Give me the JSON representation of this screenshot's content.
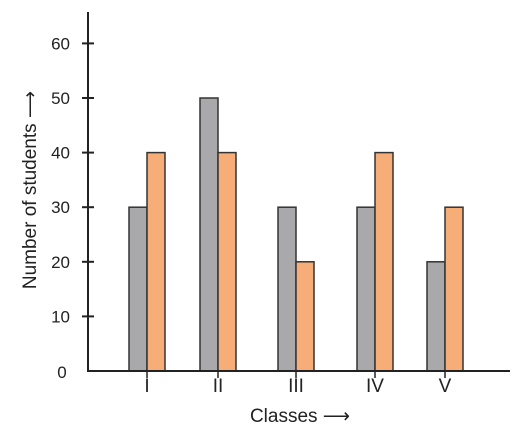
{
  "chart_data": {
    "type": "bar",
    "categories": [
      "I",
      "II",
      "III",
      "IV",
      "V"
    ],
    "series": [
      {
        "values": [
          30,
          50,
          30,
          30,
          20
        ],
        "color": "#a9a9ab"
      },
      {
        "values": [
          40,
          40,
          20,
          40,
          30
        ],
        "color": "#f7ad77"
      }
    ],
    "xlabel": "Classes ⟶",
    "ylabel": "Number of students ⟶",
    "ylim": [
      0,
      60
    ],
    "yticks": [
      0,
      10,
      20,
      30,
      40,
      50,
      60
    ],
    "origin_label": "0",
    "grid": false,
    "legend": "none"
  }
}
